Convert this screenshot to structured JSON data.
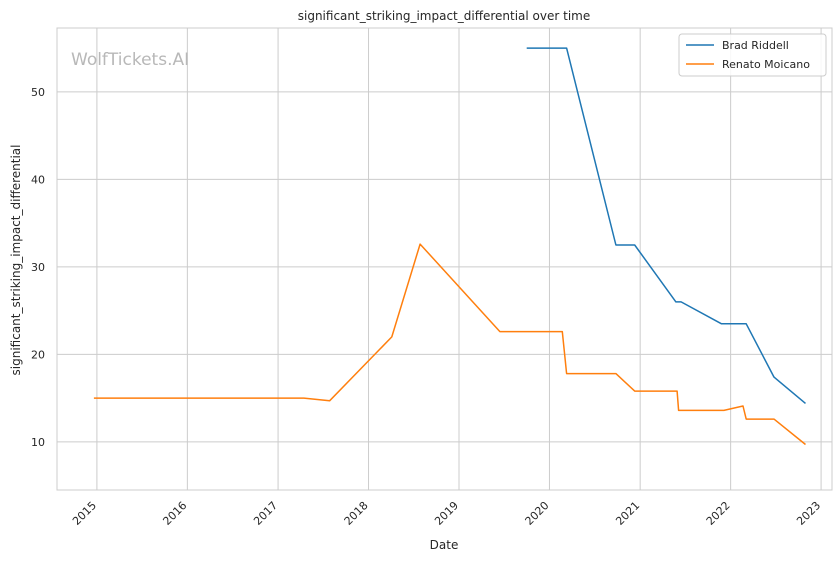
{
  "chart_data": {
    "type": "line",
    "title": "significant_striking_impact_differential over time",
    "xlabel": "Date",
    "ylabel": "significant_striking_impact_differential",
    "watermark": "WolfTickets.AI",
    "x_ticks": [
      "2015",
      "2016",
      "2017",
      "2018",
      "2019",
      "2020",
      "2021",
      "2022",
      "2023"
    ],
    "y_ticks": [
      10,
      20,
      30,
      40,
      50
    ],
    "xlim": [
      "2014-07-24",
      "2023-02-14"
    ],
    "ylim": [
      4.5,
      57.3
    ],
    "grid": true,
    "legend_position": "top-right",
    "series": [
      {
        "name": "Brad Riddell",
        "color": "#1f77b4",
        "points": [
          {
            "x": "2019-10-01",
            "y": 55.0
          },
          {
            "x": "2020-03-10",
            "y": 55.0
          },
          {
            "x": "2020-09-25",
            "y": 32.5
          },
          {
            "x": "2020-12-10",
            "y": 32.5
          },
          {
            "x": "2021-05-25",
            "y": 26.0
          },
          {
            "x": "2021-06-15",
            "y": 26.0
          },
          {
            "x": "2021-11-25",
            "y": 23.5
          },
          {
            "x": "2022-03-05",
            "y": 23.5
          },
          {
            "x": "2022-06-25",
            "y": 17.4
          },
          {
            "x": "2022-10-30",
            "y": 14.4
          }
        ]
      },
      {
        "name": "Renato Moicano",
        "color": "#ff7f0e",
        "points": [
          {
            "x": "2014-12-20",
            "y": 15.0
          },
          {
            "x": "2017-04-15",
            "y": 15.0
          },
          {
            "x": "2017-07-28",
            "y": 14.7
          },
          {
            "x": "2018-04-05",
            "y": 22.0
          },
          {
            "x": "2018-07-28",
            "y": 32.6
          },
          {
            "x": "2019-06-15",
            "y": 22.6
          },
          {
            "x": "2020-02-22",
            "y": 22.6
          },
          {
            "x": "2020-03-10",
            "y": 17.8
          },
          {
            "x": "2020-09-25",
            "y": 17.8
          },
          {
            "x": "2020-12-10",
            "y": 15.8
          },
          {
            "x": "2021-05-30",
            "y": 15.8
          },
          {
            "x": "2021-06-05",
            "y": 13.6
          },
          {
            "x": "2021-12-05",
            "y": 13.6
          },
          {
            "x": "2022-02-20",
            "y": 14.1
          },
          {
            "x": "2022-03-05",
            "y": 12.6
          },
          {
            "x": "2022-06-25",
            "y": 12.6
          },
          {
            "x": "2022-10-30",
            "y": 9.7
          }
        ]
      }
    ]
  }
}
